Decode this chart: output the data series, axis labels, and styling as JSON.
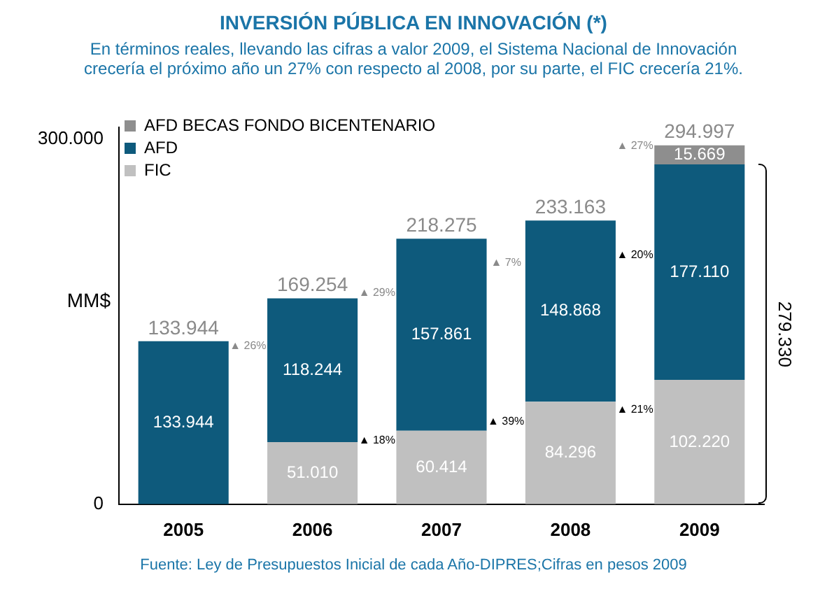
{
  "chart_data": {
    "type": "bar",
    "title": "INVERSIÓN PÚBLICA EN INNOVACIÓN (*)",
    "subtitle": "En términos reales, llevando las cifras a valor 2009, el Sistema Nacional de Innovación crecería el próximo año un 27% con respecto al 2008, por su parte, el FIC crecería 21%.",
    "ylabel": "MM$",
    "categories": [
      "2005",
      "2006",
      "2007",
      "2008",
      "2009"
    ],
    "stacked": true,
    "series": [
      {
        "name": "FIC",
        "color": "#c0c0c0",
        "values": [
          null,
          51010,
          60414,
          84296,
          102220
        ],
        "value_labels": [
          null,
          "51.010",
          "60.414",
          "84.296",
          "102.220"
        ]
      },
      {
        "name": "AFD",
        "color": "#0e5a7c",
        "values": [
          133944,
          118244,
          157861,
          148868,
          177110
        ],
        "value_labels": [
          "133.944",
          "118.244",
          "157.861",
          "148.868",
          "177.110"
        ]
      },
      {
        "name": "AFD BECAS FONDO BICENTENARIO",
        "color": "#8e8e8e",
        "values": [
          null,
          null,
          null,
          null,
          15669
        ],
        "value_labels": [
          null,
          null,
          null,
          null,
          "15.669"
        ]
      }
    ],
    "totals": [
      "133.944",
      "169.254",
      "218.275",
      "233.163",
      "294.997"
    ],
    "ylim": [
      0,
      310000
    ],
    "yticks": [
      0,
      {
        "value": 300000,
        "label": "300.000"
      }
    ],
    "grid": false,
    "legend": "top left",
    "annotations": [
      "▲ 26%",
      "▲ 29%",
      "▲ 7%",
      "▲ 27%",
      "▲ 18%",
      "▲ 39%",
      "▲ 21%",
      "▲ 20%",
      "279.330",
      "Fuente: Ley de Presupuestos Inicial de cada Año-DIPRES;Cifras en pesos 2009"
    ]
  }
}
